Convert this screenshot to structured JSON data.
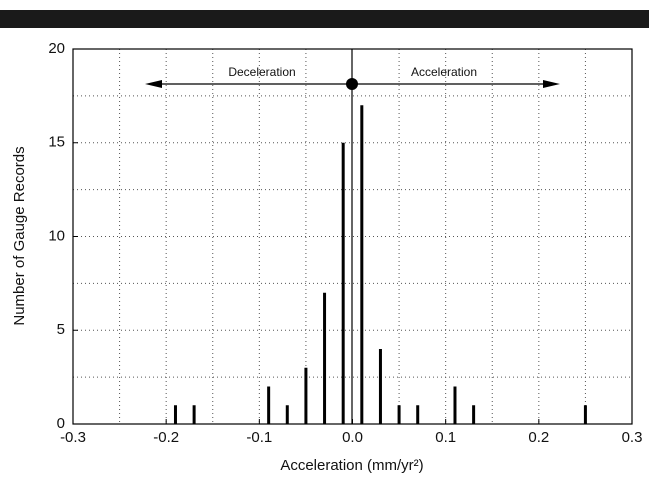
{
  "chart_data": {
    "type": "bar",
    "x_label": "Acceleration (mm/yr²)",
    "y_label": "Number of Gauge Records",
    "annotations": [
      "Deceleration",
      "Acceleration"
    ],
    "x": [
      -0.19,
      -0.17,
      -0.09,
      -0.07,
      -0.05,
      -0.03,
      -0.01,
      0.01,
      0.03,
      0.05,
      0.07,
      0.11,
      0.13,
      0.25
    ],
    "values": [
      1,
      1,
      2,
      1,
      3,
      7,
      15,
      17,
      4,
      1,
      1,
      2,
      1,
      1
    ],
    "color": "#000000",
    "xlim": [
      -0.3,
      0.3
    ],
    "ylim": [
      0,
      20
    ],
    "xticks": [
      -0.3,
      -0.2,
      -0.1,
      {
        "value": 0,
        "label": "0.0"
      },
      0.1,
      0.2,
      0.3
    ],
    "yticks": [
      0,
      5,
      10,
      15,
      20
    ],
    "x_grid": [
      -0.25,
      -0.2,
      -0.15,
      -0.1,
      -0.05,
      0.05,
      0.1,
      0.15,
      0.2,
      0.25
    ],
    "y_grid": [
      2.5,
      5,
      7.5,
      10,
      12.5,
      15,
      17.5
    ],
    "grid": true
  }
}
